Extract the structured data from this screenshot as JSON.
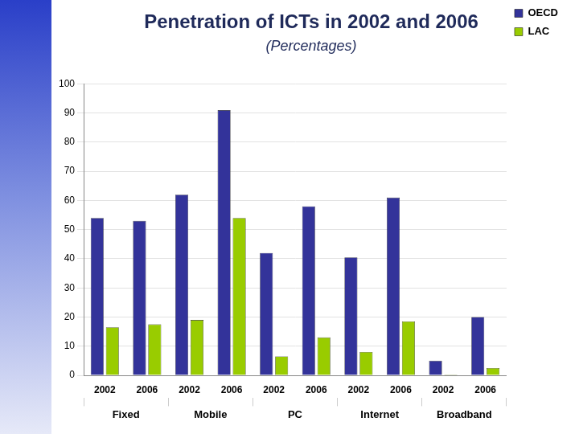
{
  "chart_data": {
    "type": "bar",
    "title": "Penetration of ICTs in 2002 and 2006",
    "subtitle": "(Percentages)",
    "categories": [
      "2002",
      "2006",
      "2002",
      "2006",
      "2002",
      "2006",
      "2002",
      "2006",
      "2002",
      "2006"
    ],
    "category_groups": [
      "Fixed",
      "Mobile",
      "PC",
      "Internet",
      "Broadband"
    ],
    "series": [
      {
        "name": "OECD",
        "color": "#33339a",
        "values": [
          54,
          53,
          62,
          91,
          42,
          58,
          40.5,
          61,
          5,
          20
        ]
      },
      {
        "name": "LAC",
        "color": "#99cc00",
        "values": [
          16.5,
          17.5,
          19,
          54,
          6.5,
          13,
          8,
          18.5,
          0.3,
          2.5
        ]
      }
    ],
    "ylim": [
      0,
      100
    ],
    "yticks": [
      0,
      10,
      20,
      30,
      40,
      50,
      60,
      70,
      80,
      90,
      100
    ],
    "grid": true,
    "legend": "top right"
  }
}
